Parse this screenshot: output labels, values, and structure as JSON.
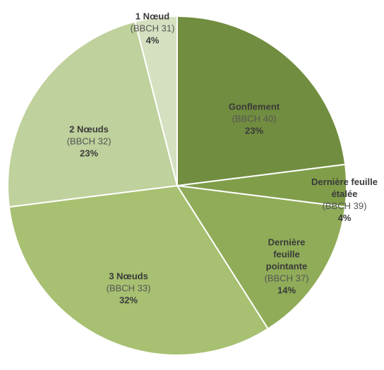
{
  "chart_data": {
    "type": "pie",
    "categories": [
      "Gonflement",
      "Dernière feuille étalée",
      "Dernière feuille pointante",
      "3 Nœuds",
      "2 Nœuds",
      "1 Nœud"
    ],
    "sublabels": [
      "(BBCH 40)",
      "(BBCH 39)",
      "(BBCH 37)",
      "(BBCH 33)",
      "(BBCH 32)",
      "(BBCH 31)"
    ],
    "values": [
      23,
      4,
      14,
      32,
      23,
      4
    ],
    "value_labels": [
      "23%",
      "4%",
      "14%",
      "32%",
      "23%",
      "4%"
    ],
    "colors": [
      "#718d3f",
      "#809d4a",
      "#90ac58",
      "#a7c071",
      "#bfd19c",
      "#d5e0c1"
    ]
  }
}
